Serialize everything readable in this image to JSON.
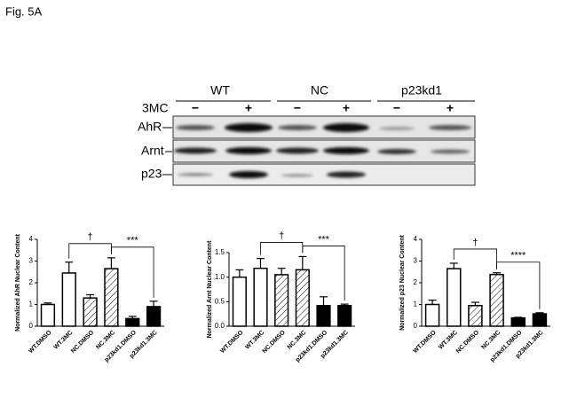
{
  "figure_label": "Fig. 5A",
  "blot": {
    "groups": [
      "WT",
      "NC",
      "p23kd1"
    ],
    "treatment": "3MC",
    "lanes": [
      "−",
      "+",
      "−",
      "+",
      "−",
      "+"
    ],
    "rows": [
      "AhR",
      "Arnt",
      "p23"
    ]
  },
  "chart_data": [
    {
      "type": "bar",
      "y_label": "Normalized AhR Nuclear Content",
      "categories": [
        "WT.DMSO",
        "WT.3MC",
        "NC.DMSO",
        "NC.3MC",
        "p23kd1.DMSO",
        "p23kd1.3MC"
      ],
      "values": [
        1.0,
        2.45,
        1.3,
        2.65,
        0.35,
        0.9
      ],
      "errors": [
        0.07,
        0.5,
        0.15,
        0.5,
        0.1,
        0.25
      ],
      "fills": [
        "open",
        "open",
        "hatched",
        "hatched",
        "solid",
        "solid"
      ],
      "ylim": [
        0,
        4
      ],
      "yticks": [
        0,
        1,
        2,
        3,
        4
      ],
      "brackets": [
        {
          "from": 1,
          "to": 3,
          "label": "†"
        },
        {
          "from": 3,
          "to": 5,
          "label": "***"
        }
      ]
    },
    {
      "type": "bar",
      "y_label": "Normalized Arnt Nuclear Content",
      "categories": [
        "WT.DMSO",
        "WT.3MC",
        "NC.DMSO",
        "NC.3MC",
        "p23kd1.DMSO",
        "p23kd1.3MC"
      ],
      "values": [
        1.0,
        1.18,
        1.05,
        1.15,
        0.42,
        0.42
      ],
      "errors": [
        0.15,
        0.2,
        0.13,
        0.27,
        0.18,
        0.03
      ],
      "fills": [
        "open",
        "open",
        "hatched",
        "hatched",
        "solid",
        "solid"
      ],
      "ylim": [
        0,
        1.5
      ],
      "yticks": [
        {
          "value": 0,
          "label": "0.0"
        },
        {
          "value": 0.5,
          "label": "0.5"
        },
        {
          "value": 1,
          "label": "1.0"
        },
        {
          "value": 1.5,
          "label": "1.5"
        }
      ],
      "brackets": [
        {
          "from": 1,
          "to": 3,
          "label": "†"
        },
        {
          "from": 3,
          "to": 5,
          "label": "***"
        }
      ]
    },
    {
      "type": "bar",
      "y_label": "Normalized p23 Nuclear Content",
      "categories": [
        "WT.DMSO",
        "WT.3MC",
        "NC.DMSO",
        "NC.3MC",
        "p23kd1.DMSO",
        "p23kd1.3MC"
      ],
      "values": [
        1.0,
        2.65,
        0.95,
        2.38,
        0.38,
        0.57
      ],
      "errors": [
        0.2,
        0.25,
        0.15,
        0.08,
        0.03,
        0.05
      ],
      "fills": [
        "open",
        "open",
        "hatched",
        "hatched",
        "solid",
        "solid"
      ],
      "ylim": [
        0,
        4
      ],
      "yticks": [
        0,
        1,
        2,
        3,
        4
      ],
      "brackets": [
        {
          "from": 1,
          "to": 3,
          "label": "†"
        },
        {
          "from": 3,
          "to": 5,
          "label": "****"
        }
      ]
    }
  ]
}
